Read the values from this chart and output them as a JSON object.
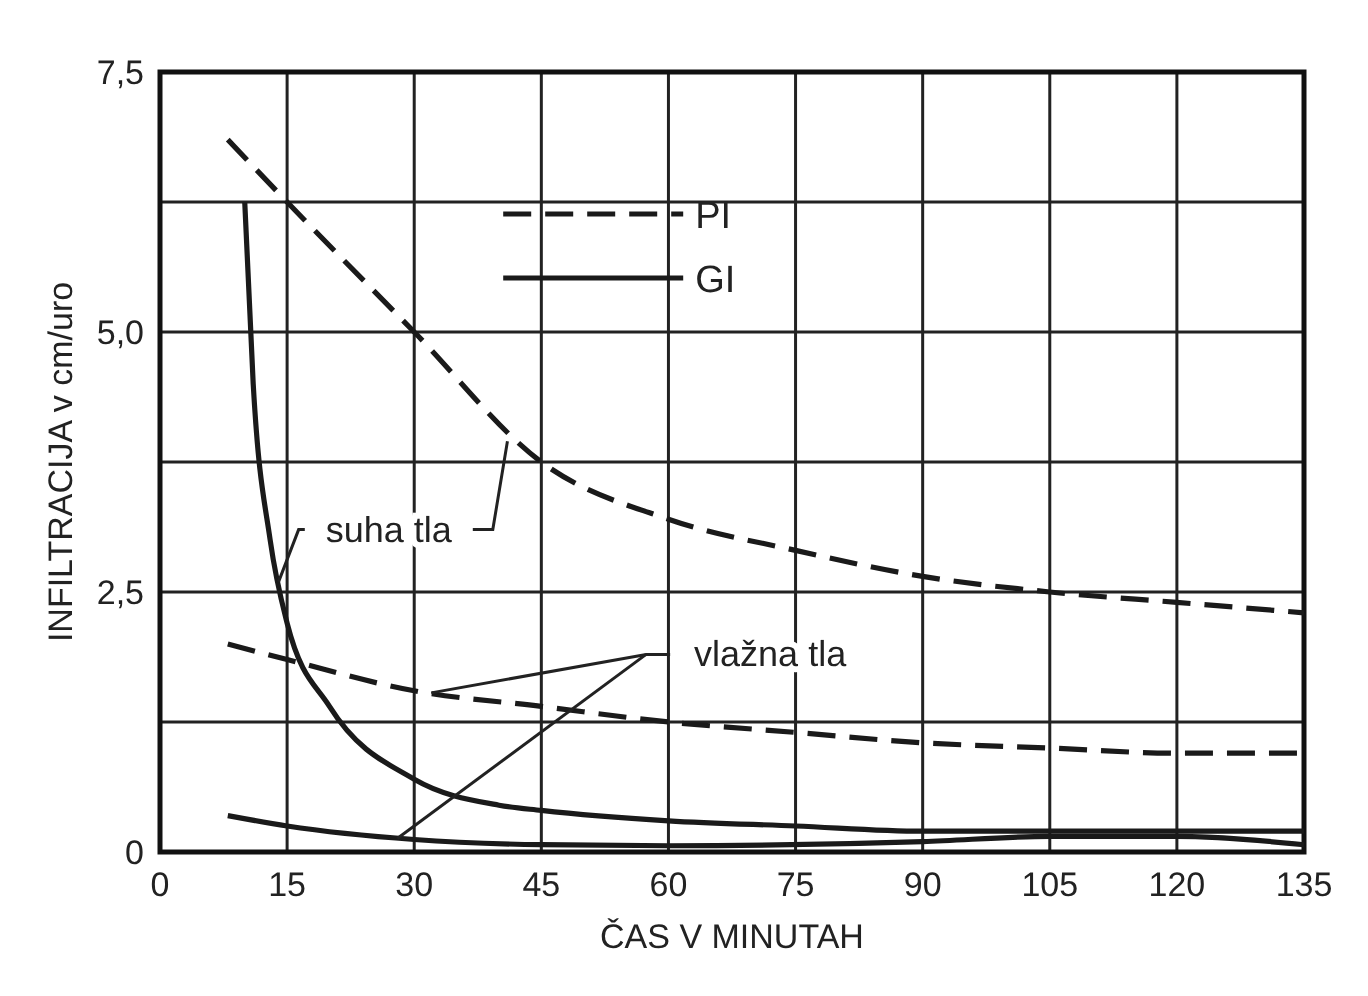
{
  "chart_data": {
    "type": "line",
    "xlabel": "ČAS V MINUTAH",
    "ylabel": "INFILTRACIJA v cm/uro",
    "xlim": [
      0,
      135
    ],
    "xticks": [
      0,
      15,
      30,
      45,
      60,
      75,
      90,
      105,
      120,
      135
    ],
    "ylim": [
      0,
      7.5
    ],
    "yticks": [
      0,
      {
        "value": 1.25,
        "label": null
      },
      {
        "value": 2.5,
        "label": "2,5"
      },
      {
        "value": 3.75,
        "label": null
      },
      {
        "value": 5,
        "label": "5,0"
      },
      {
        "value": 6.25,
        "label": null
      },
      {
        "value": 7.5,
        "label": "7,5"
      }
    ],
    "grid": true,
    "legend": "top",
    "marker": "none",
    "series": [
      {
        "name": "PI",
        "color": "#1a1a1a",
        "line_style": "dashed",
        "x": [
          8,
          15,
          30,
          45,
          60,
          75,
          90,
          105,
          120,
          135
        ],
        "values": [
          6.85,
          6.25,
          5.0,
          3.75,
          3.2,
          2.9,
          2.65,
          2.5,
          2.4,
          2.3
        ]
      },
      {
        "name": "GI",
        "color": "#1a1a1a",
        "line_style": "solid",
        "x": [
          10,
          11,
          13,
          15,
          20,
          30,
          40,
          45,
          60,
          75,
          90,
          120,
          135
        ],
        "values": [
          6.25,
          4.5,
          3.0,
          2.2,
          1.4,
          0.7,
          0.45,
          0.4,
          0.3,
          0.25,
          0.2,
          0.2,
          0.2
        ]
      },
      {
        "color": "#1a1a1a",
        "line_style": "dashed",
        "x": [
          8,
          15,
          30,
          45,
          60,
          75,
          90,
          105,
          120,
          135
        ],
        "values": [
          2.0,
          1.85,
          1.55,
          1.4,
          1.25,
          1.15,
          1.05,
          1.0,
          0.95,
          0.95
        ]
      },
      {
        "color": "#1a1a1a",
        "line_style": "solid",
        "x": [
          8,
          15,
          30,
          45,
          60,
          90,
          105,
          120,
          135
        ],
        "values": [
          0.35,
          0.25,
          0.12,
          0.07,
          0.06,
          0.1,
          0.15,
          0.15,
          0.07
        ]
      }
    ],
    "annotations": [
      {
        "text": "suha tla",
        "x": 14,
        "y": 2.6
      },
      {
        "text": "vlažna tla",
        "x": 32,
        "y": 1.53
      }
    ]
  }
}
